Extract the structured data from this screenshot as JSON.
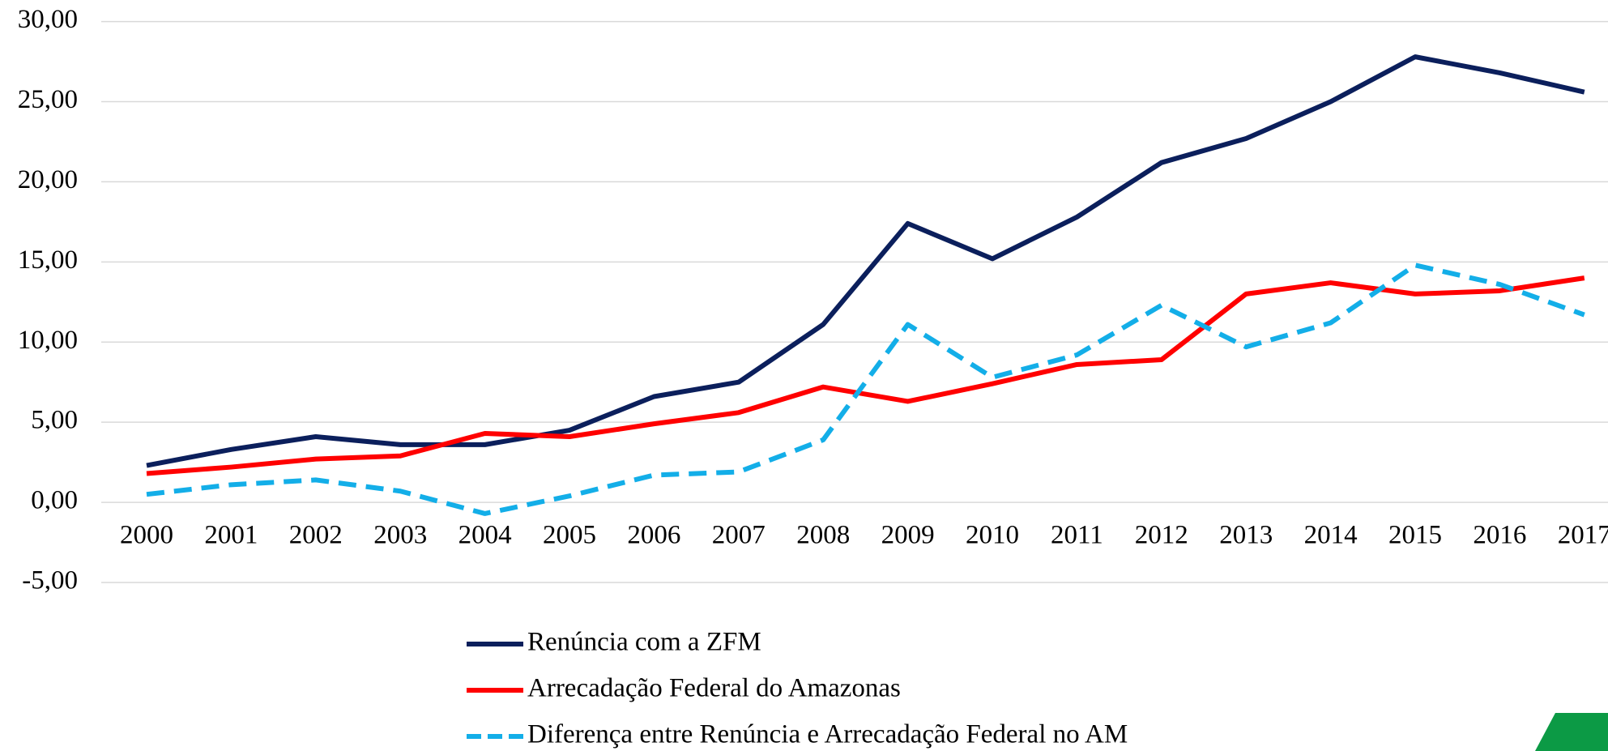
{
  "chart_data": {
    "type": "line",
    "categories": [
      "2000",
      "2001",
      "2002",
      "2003",
      "2004",
      "2005",
      "2006",
      "2007",
      "2008",
      "2009",
      "2010",
      "2011",
      "2012",
      "2013",
      "2014",
      "2015",
      "2016",
      "2017"
    ],
    "series": [
      {
        "name": "Renúncia com a ZFM",
        "color": "#0b1f5c",
        "style": "solid",
        "values": [
          2.3,
          3.3,
          4.1,
          3.6,
          3.6,
          4.5,
          6.6,
          7.5,
          11.1,
          17.4,
          15.2,
          17.8,
          21.2,
          22.7,
          25.0,
          27.8,
          26.8,
          25.6
        ]
      },
      {
        "name": "Arrecadação Federal  do Amazonas",
        "color": "#ff0000",
        "style": "solid",
        "values": [
          1.8,
          2.2,
          2.7,
          2.9,
          4.3,
          4.1,
          4.9,
          5.6,
          7.2,
          6.3,
          7.4,
          8.6,
          8.9,
          13.0,
          13.7,
          13.0,
          13.2,
          14.0
        ]
      },
      {
        "name": "Diferença entre Renúncia e Arrecadação Federal no AM",
        "color": "#13aee8",
        "style": "dashed",
        "values": [
          0.5,
          1.1,
          1.4,
          0.7,
          -0.7,
          0.4,
          1.7,
          1.9,
          3.9,
          11.1,
          7.8,
          9.2,
          12.3,
          9.7,
          11.2,
          14.8,
          13.6,
          11.7
        ]
      }
    ],
    "ylim": [
      -5,
      30
    ],
    "yticks": [
      {
        "value": -5,
        "label": "-5,00"
      },
      {
        "value": 0,
        "label": "0,00"
      },
      {
        "value": 5,
        "label": "5,00"
      },
      {
        "value": 10,
        "label": "10,00"
      },
      {
        "value": 15,
        "label": "15,00"
      },
      {
        "value": 20,
        "label": "20,00"
      },
      {
        "value": 25,
        "label": "25,00"
      },
      {
        "value": 30,
        "label": "30,00"
      }
    ],
    "grid": true,
    "legend": "bottom"
  }
}
